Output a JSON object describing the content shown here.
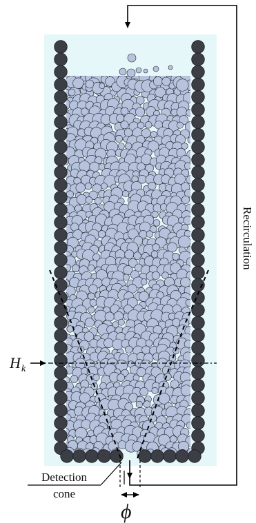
{
  "labels": {
    "recirculation": "Recirculation",
    "hk_main": "H",
    "hk_sub": "k",
    "detection_line1": "Detection",
    "detection_line2": "cone",
    "phi": "ϕ"
  },
  "colors": {
    "fluid": "#e6f7f9",
    "wall": "#3b3e45",
    "wall_stroke": "#1c1e22",
    "particle": "#b7c3dd",
    "particle_stroke": "#1f2430",
    "line": "#000000"
  }
}
